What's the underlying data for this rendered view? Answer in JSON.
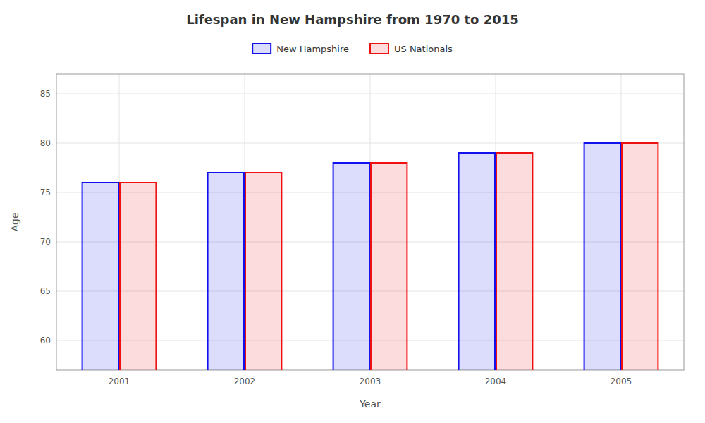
{
  "chart_data": {
    "type": "bar",
    "title": "Lifespan in New Hampshire from 1970 to 2015",
    "x_label": "Year",
    "y_label": "Age",
    "categories": [
      "2001",
      "2002",
      "2003",
      "2004",
      "2005"
    ],
    "series": [
      {
        "name": "New Hampshire",
        "color": "#1111ee",
        "values": [
          76,
          77,
          78,
          79,
          80
        ]
      },
      {
        "name": "US Nationals",
        "color": "#ee1111",
        "values": [
          76,
          77,
          78,
          79,
          80
        ]
      }
    ],
    "ylim": [
      57,
      87
    ],
    "yticks": [
      60,
      65,
      70,
      75,
      80,
      85
    ],
    "grid": true,
    "legend": "top"
  }
}
